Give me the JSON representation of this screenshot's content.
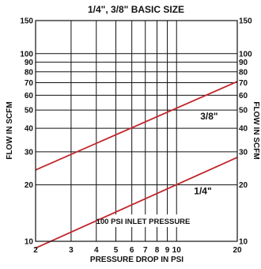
{
  "chart_data": {
    "type": "line",
    "title": "1/4\", 3/8\" BASIC SIZE",
    "xlabel": "PRESSURE DROP IN PSI",
    "ylabel": "FLOW IN SCFM",
    "ylabel_right": "FLOW IN SCFM",
    "x_scale": "log",
    "y_scale": "log",
    "xlim": [
      2,
      20
    ],
    "ylim": [
      10,
      150
    ],
    "grid": true,
    "x_ticks": [
      2,
      3,
      4,
      5,
      6,
      7,
      8,
      9,
      10,
      20
    ],
    "x_tick_labels": [
      "2",
      "3",
      "4",
      "5",
      "6",
      "7",
      "8",
      "9",
      "10",
      "20"
    ],
    "y_ticks": [
      10,
      20,
      30,
      40,
      50,
      60,
      70,
      80,
      90,
      100,
      150
    ],
    "y_tick_labels": [
      "10",
      "20",
      "30",
      "40",
      "50",
      "60",
      "70",
      "80",
      "90",
      "100",
      "150"
    ],
    "series": [
      {
        "name": "3/8\"",
        "color": "#c0272d",
        "x": [
          2,
          20
        ],
        "y": [
          24,
          71
        ]
      },
      {
        "name": "1/4\"",
        "color": "#c0272d",
        "x": [
          2,
          20
        ],
        "y": [
          9.2,
          28
        ]
      }
    ],
    "annotations": [
      "100 PSI INLET PRESSURE"
    ]
  }
}
